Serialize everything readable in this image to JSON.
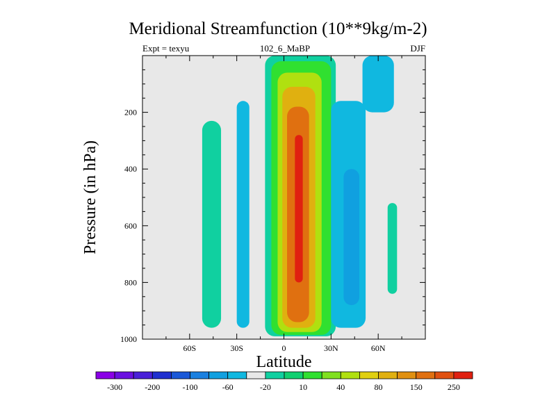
{
  "chart_data": {
    "type": "heatmap",
    "title": "Meridional Streamfunction (10**9kg/m-2)",
    "subtitle_left": "Expt = texyu",
    "subtitle_center": "102_6_MaBP",
    "subtitle_right": "DJF",
    "xlabel": "Latitude",
    "ylabel": "Pressure (in hPa)",
    "xlim": [
      -90,
      90
    ],
    "ylim": [
      1000,
      0
    ],
    "x_ticks": [
      {
        "value": -60,
        "label": "60S"
      },
      {
        "value": -30,
        "label": "30S"
      },
      {
        "value": 0,
        "label": "0"
      },
      {
        "value": 30,
        "label": "30N"
      },
      {
        "value": 60,
        "label": "60N"
      }
    ],
    "y_ticks": [
      {
        "value": 200,
        "label": "200"
      },
      {
        "value": 400,
        "label": "400"
      },
      {
        "value": 600,
        "label": "600"
      },
      {
        "value": 800,
        "label": "800"
      },
      {
        "value": 1000,
        "label": "1000"
      }
    ],
    "background_color": "#e8e8e8",
    "colorbar": {
      "colors": [
        "#8a00e6",
        "#6a10e0",
        "#4a20d8",
        "#2030d0",
        "#1a58d8",
        "#1a80e0",
        "#10a0e0",
        "#10b8e0",
        "#e8e8e8",
        "#10d0a0",
        "#10d070",
        "#30e030",
        "#80e020",
        "#b0e010",
        "#e0d010",
        "#e0b010",
        "#e09010",
        "#e07010",
        "#e05010",
        "#e02010"
      ],
      "labels": [
        "-300",
        "-200",
        "-100",
        "-60",
        "-20",
        "10",
        "40",
        "80",
        "150",
        "250"
      ]
    },
    "cells": [
      {
        "lat_range": [
          -52,
          -40
        ],
        "p_range": [
          230,
          960
        ],
        "level": 10
      },
      {
        "lat_range": [
          -30,
          -22
        ],
        "p_range": [
          160,
          960
        ],
        "level": -20
      },
      {
        "lat_range": [
          -12,
          33
        ],
        "p_range": [
          0,
          990
        ],
        "level": 10
      },
      {
        "lat_range": [
          -8,
          30
        ],
        "p_range": [
          20,
          985
        ],
        "level": 40
      },
      {
        "lat_range": [
          -4,
          24
        ],
        "p_range": [
          60,
          975
        ],
        "level": 80
      },
      {
        "lat_range": [
          -1,
          20
        ],
        "p_range": [
          110,
          960
        ],
        "level": 150
      },
      {
        "lat_range": [
          2,
          16
        ],
        "p_range": [
          180,
          940
        ],
        "level": 250
      },
      {
        "lat_range": [
          7,
          12
        ],
        "p_range": [
          280,
          800
        ],
        "level": 300
      },
      {
        "lat_range": [
          30,
          52
        ],
        "p_range": [
          160,
          960
        ],
        "level": -20
      },
      {
        "lat_range": [
          38,
          48
        ],
        "p_range": [
          400,
          880
        ],
        "level": -60
      },
      {
        "lat_range": [
          50,
          70
        ],
        "p_range": [
          0,
          200
        ],
        "level": -20
      },
      {
        "lat_range": [
          66,
          72
        ],
        "p_range": [
          520,
          840
        ],
        "level": 10
      }
    ]
  }
}
